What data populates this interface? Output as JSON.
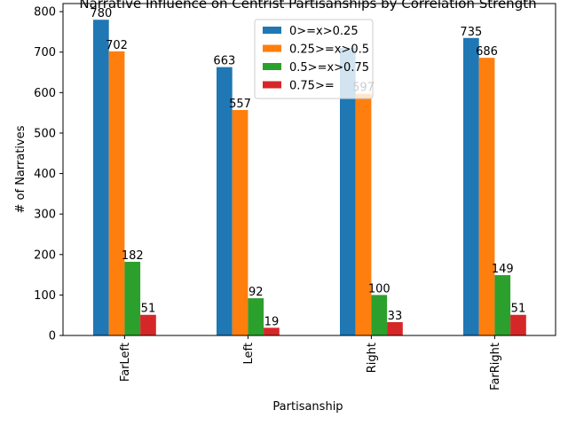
{
  "chart_data": {
    "type": "bar",
    "title": "Narrative Influence on Centrist Partisanships by Correlation Strength",
    "xlabel": "Partisanship",
    "ylabel": "# of Narratives",
    "categories": [
      "FarLeft",
      "Left",
      "Right",
      "FarRight"
    ],
    "series": [
      {
        "name": "0>=x>0.25",
        "color": "#1f77b4",
        "values": [
          780,
          663,
          710,
          735
        ],
        "labels": [
          "780",
          "663",
          "",
          "735"
        ]
      },
      {
        "name": "0.25>=x>0.5",
        "color": "#ff7f0e",
        "values": [
          702,
          557,
          597,
          686
        ],
        "labels": [
          "702",
          "557",
          "597",
          "686"
        ]
      },
      {
        "name": "0.5>=x>0.75",
        "color": "#2ca02c",
        "values": [
          182,
          92,
          100,
          149
        ],
        "labels": [
          "182",
          "92",
          "100",
          "149"
        ]
      },
      {
        "name": "0.75>=",
        "color": "#d62728",
        "values": [
          51,
          19,
          33,
          51
        ],
        "labels": [
          "51",
          "19",
          "33",
          "51"
        ]
      }
    ],
    "ylim": [
      0,
      820
    ],
    "yticks": [
      0,
      100,
      200,
      300,
      400,
      500,
      600,
      700,
      800
    ],
    "grid": false,
    "legend_position": "top-center"
  }
}
